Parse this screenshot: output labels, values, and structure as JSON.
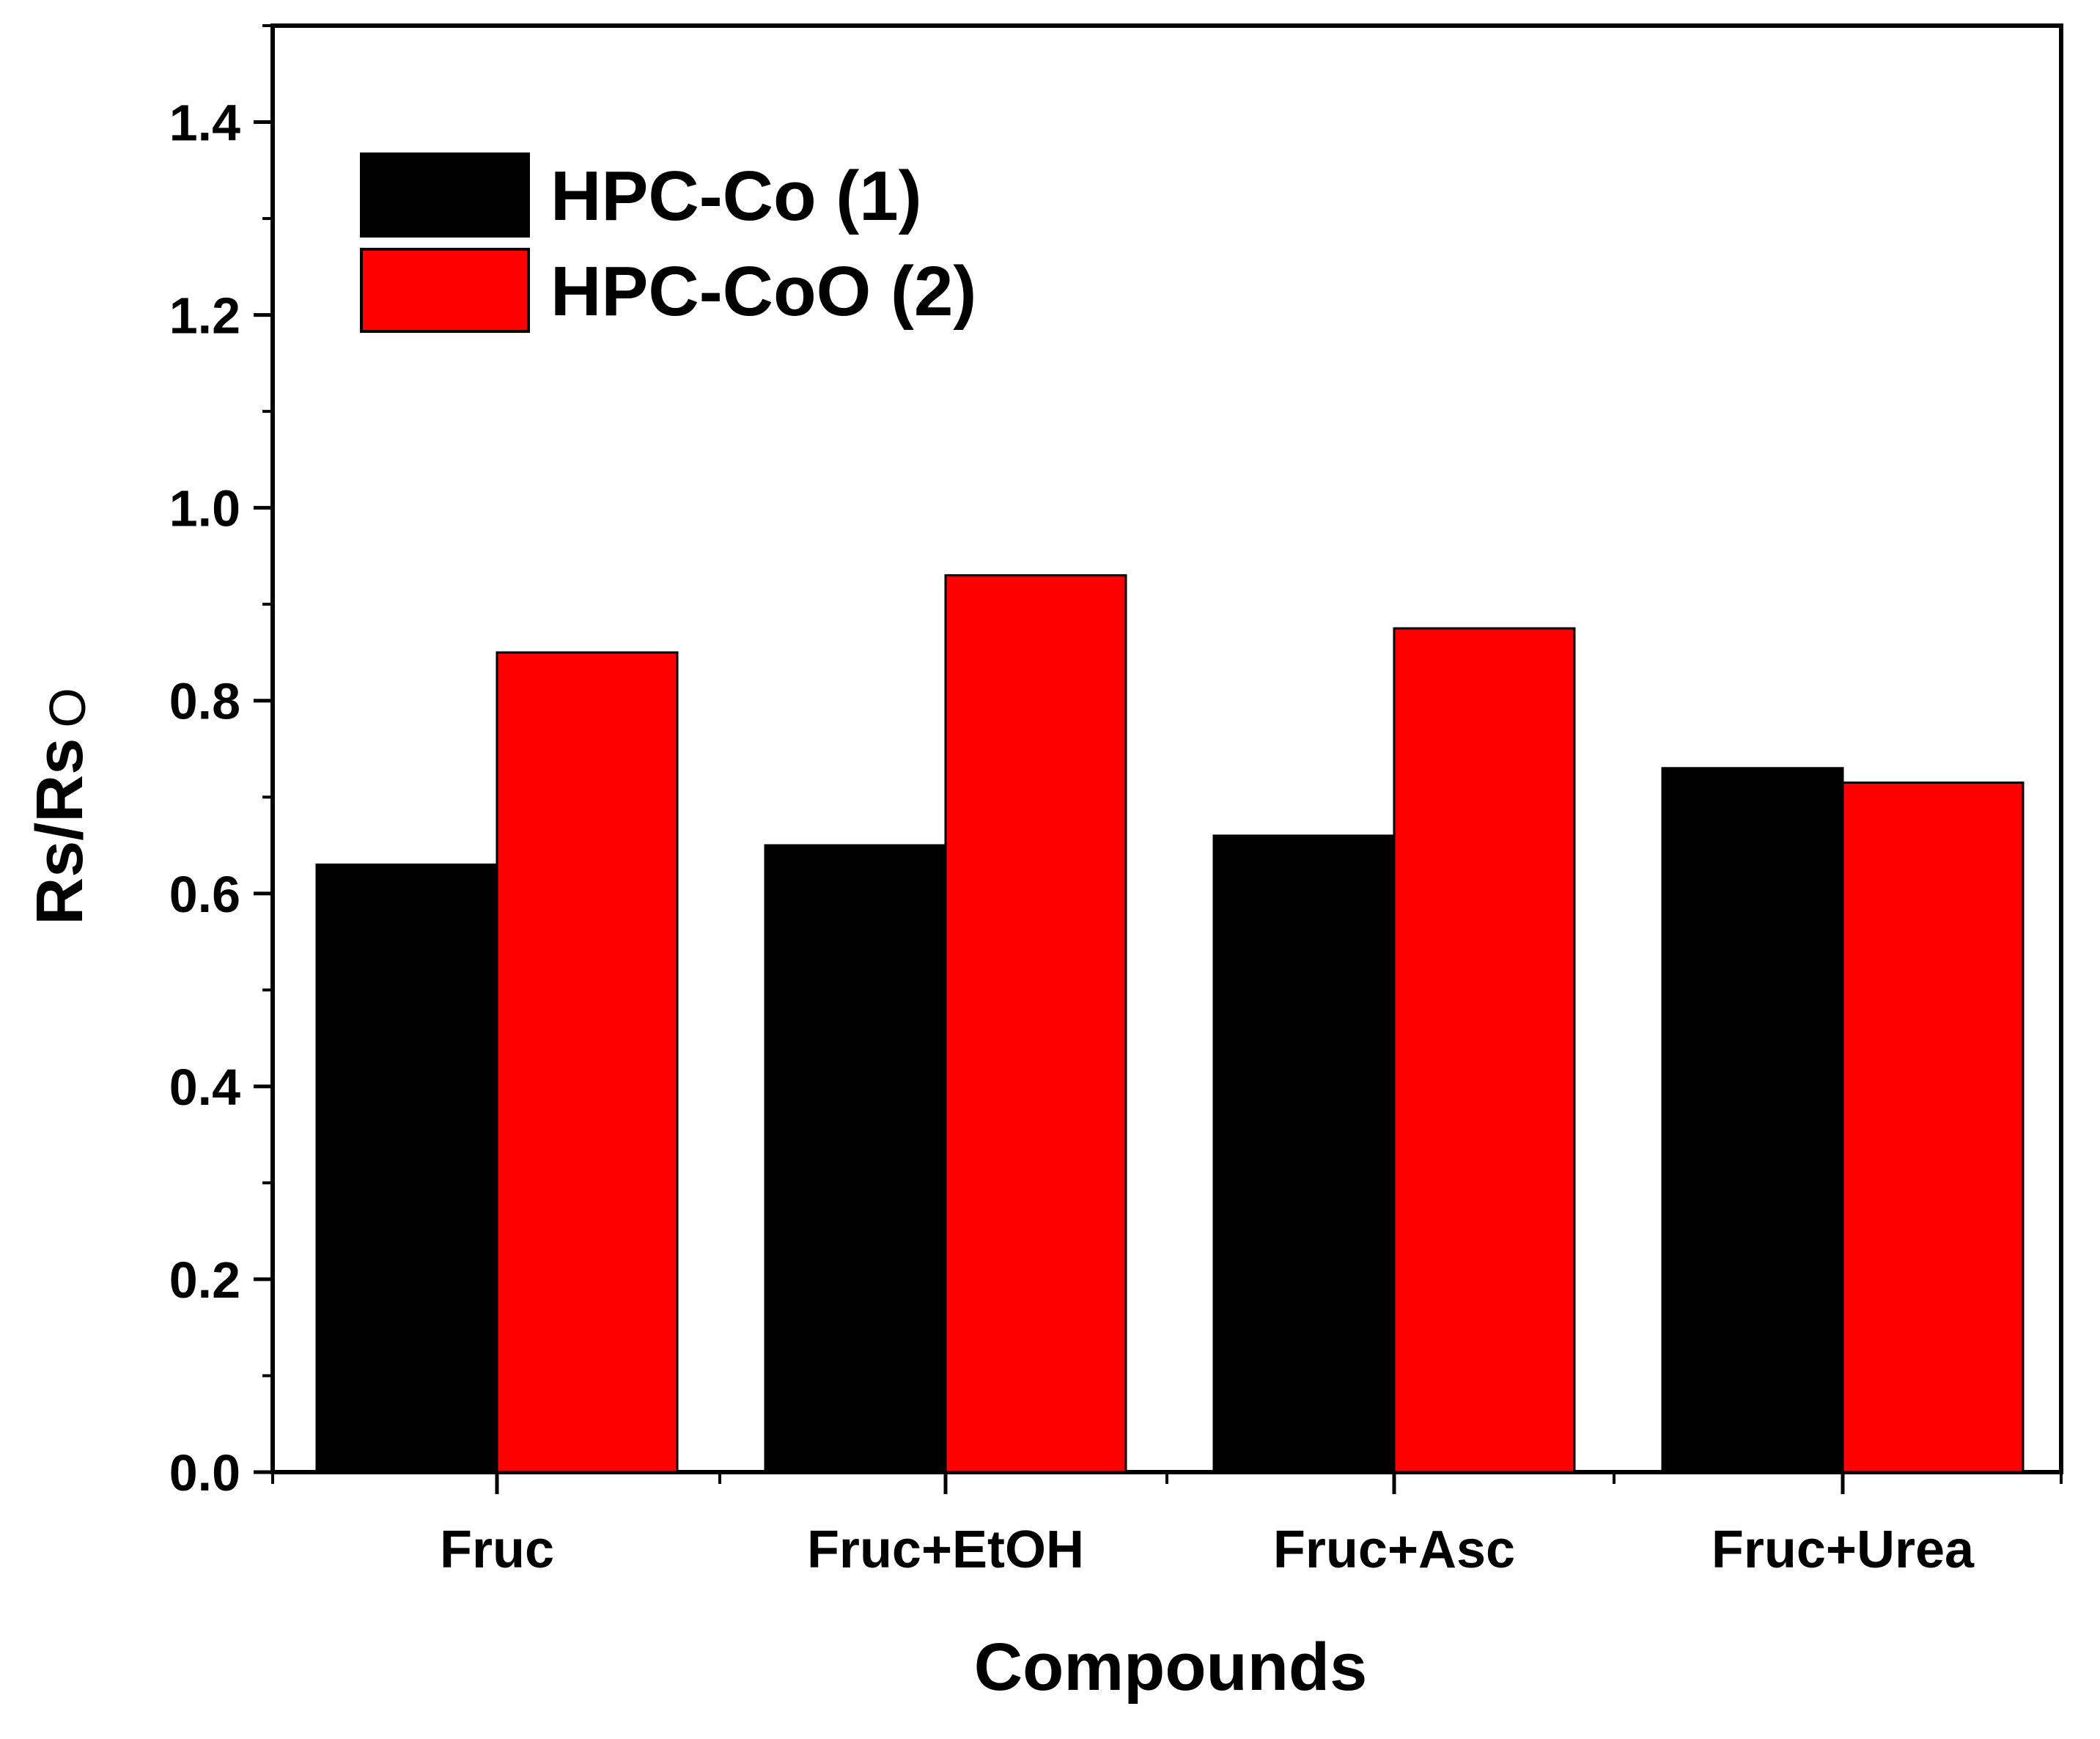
{
  "chart_data": {
    "type": "bar",
    "title": "",
    "xlabel": "Compounds",
    "ylabel": "Rs/Rs",
    "ylabel_subscript": "O",
    "ylim": [
      0,
      1.5
    ],
    "yticks": [
      "0.0",
      "0.2",
      "0.4",
      "0.6",
      "0.8",
      "1.0",
      "1.2",
      "1.4"
    ],
    "categories": [
      "Fruc",
      "Fruc+EtOH",
      "Fruc+Asc",
      "Fruc+Urea"
    ],
    "series": [
      {
        "name": "HPC-Co (1)",
        "color": "#000000",
        "values": [
          0.63,
          0.65,
          0.66,
          0.73
        ]
      },
      {
        "name": "HPC-CoO (2)",
        "color": "#ff0000",
        "values": [
          0.85,
          0.93,
          0.875,
          0.715
        ]
      }
    ],
    "legend_position": "top-left",
    "grid": false
  }
}
